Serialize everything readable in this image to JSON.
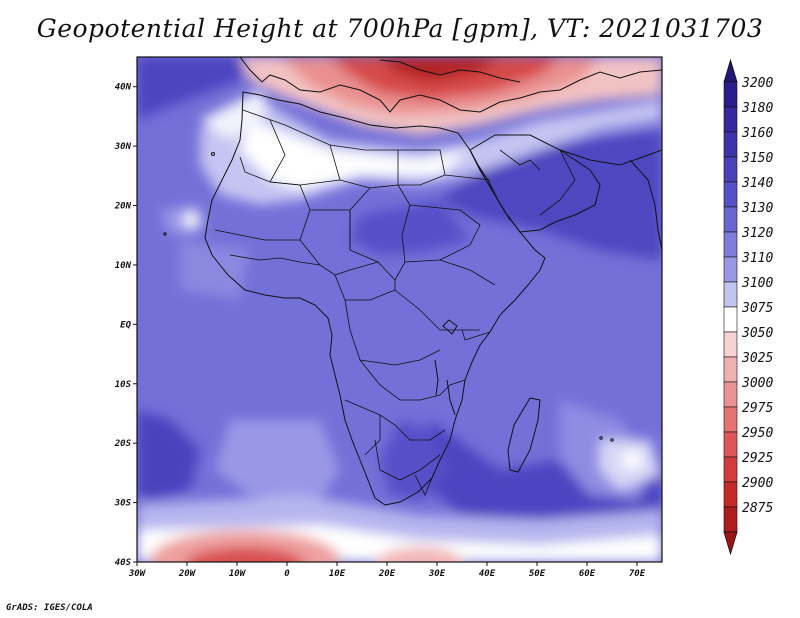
{
  "title": "Geopotential Height at 700hPa [gpm], VT: 2021031703",
  "footer": "GrADS: IGES/COLA",
  "map": {
    "field": "700hPa geopotential height",
    "units": "gpm",
    "lon_range": [
      -30,
      75
    ],
    "lat_range": [
      -40,
      45
    ],
    "lat_ticks": [
      {
        "value": 40,
        "label": "40N"
      },
      {
        "value": 30,
        "label": "30N"
      },
      {
        "value": 20,
        "label": "20N"
      },
      {
        "value": 10,
        "label": "10N"
      },
      {
        "value": 0,
        "label": "EQ"
      },
      {
        "value": -10,
        "label": "10S"
      },
      {
        "value": -20,
        "label": "20S"
      },
      {
        "value": -30,
        "label": "30S"
      },
      {
        "value": -40,
        "label": "40S"
      }
    ],
    "lon_ticks": [
      {
        "value": -30,
        "label": "30W"
      },
      {
        "value": -20,
        "label": "20W"
      },
      {
        "value": -10,
        "label": "10W"
      },
      {
        "value": 0,
        "label": "0"
      },
      {
        "value": 10,
        "label": "10E"
      },
      {
        "value": 20,
        "label": "20E"
      },
      {
        "value": 30,
        "label": "30E"
      },
      {
        "value": 40,
        "label": "40E"
      },
      {
        "value": 50,
        "label": "50E"
      },
      {
        "value": 60,
        "label": "60E"
      },
      {
        "value": 70,
        "label": "70E"
      }
    ]
  },
  "colorbar": {
    "levels": [
      {
        "label": "3200",
        "color": "#2a1c8f"
      },
      {
        "label": "3180",
        "color": "#3527a0"
      },
      {
        "label": "3160",
        "color": "#3f33ad"
      },
      {
        "label": "3150",
        "color": "#4a40bb"
      },
      {
        "label": "3140",
        "color": "#5650c8"
      },
      {
        "label": "3130",
        "color": "#6a65d2"
      },
      {
        "label": "3120",
        "color": "#7f7cdd"
      },
      {
        "label": "3110",
        "color": "#9997e6"
      },
      {
        "label": "3100",
        "color": "#c3c3f2"
      },
      {
        "label": "3075",
        "color": "#ffffff"
      },
      {
        "label": "3050",
        "color": "#f6d2d2"
      },
      {
        "label": "3025",
        "color": "#f1b0b0"
      },
      {
        "label": "3000",
        "color": "#eb9292"
      },
      {
        "label": "2975",
        "color": "#e67272"
      },
      {
        "label": "2950",
        "color": "#df5454"
      },
      {
        "label": "2925",
        "color": "#d63b3b"
      },
      {
        "label": "2900",
        "color": "#c72828"
      },
      {
        "label": "2875",
        "color": "#b11b1b"
      }
    ],
    "top_color": "#20157a",
    "bottom_color": "#9e1414"
  }
}
